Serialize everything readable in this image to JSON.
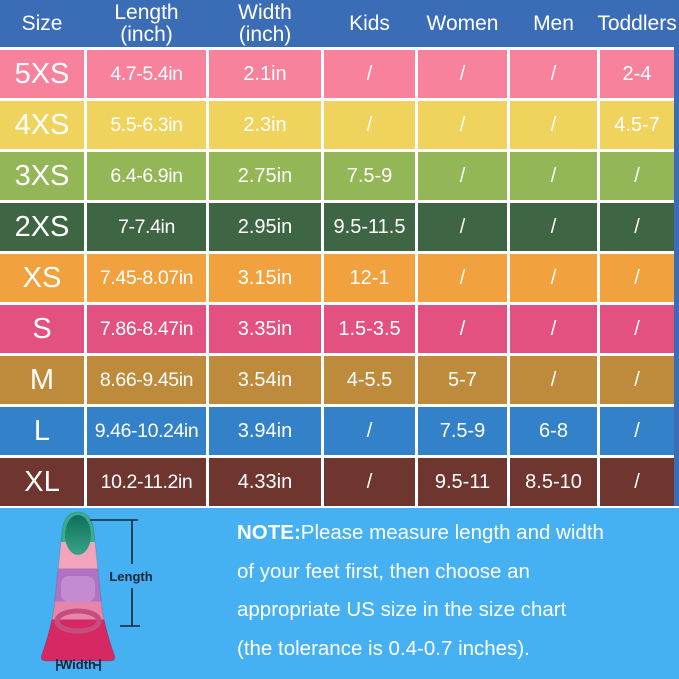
{
  "colors": {
    "header_blue": "#3A6DB5",
    "grid_white": "#FFFFFF",
    "footer_cyan": "#46B1F2",
    "table_text": "#FFFFFF",
    "annotation_navy": "#17253A",
    "row_colors": [
      "#F8819C",
      "#EFD35C",
      "#93B656",
      "#3F6644",
      "#F1A23F",
      "#E25180",
      "#BE8B3D",
      "#3381C9",
      "#6F3630"
    ]
  },
  "table": {
    "headers": [
      {
        "label": "Size"
      },
      {
        "label": "Length",
        "sub": "(inch)"
      },
      {
        "label": "Width",
        "sub": "(inch)"
      },
      {
        "label": "Kids"
      },
      {
        "label": "Women"
      },
      {
        "label": "Men"
      },
      {
        "label": "Toddlers"
      }
    ]
  },
  "chart_data": {
    "type": "table",
    "columns": [
      "Size",
      "Length (inch)",
      "Width (inch)",
      "Kids",
      "Women",
      "Men",
      "Toddlers"
    ],
    "rows": [
      [
        "5XS",
        "4.7-5.4in",
        "2.1in",
        "/",
        "/",
        "/",
        "2-4"
      ],
      [
        "4XS",
        "5.5-6.3in",
        "2.3in",
        "/",
        "/",
        "/",
        "4.5-7"
      ],
      [
        "3XS",
        "6.4-6.9in",
        "2.75in",
        "7.5-9",
        "/",
        "/",
        "/"
      ],
      [
        "2XS",
        "7-7.4in",
        "2.95in",
        "9.5-11.5",
        "/",
        "/",
        "/"
      ],
      [
        "XS",
        "7.45-8.07in",
        "3.15in",
        "12-1",
        "/",
        "/",
        "/"
      ],
      [
        "S",
        "7.86-8.47in",
        "3.35in",
        "1.5-3.5",
        "/",
        "/",
        "/"
      ],
      [
        "M",
        "8.66-9.45in",
        "3.54in",
        "4-5.5",
        "5-7",
        "/",
        "/"
      ],
      [
        "L",
        "9.46-10.24in",
        "3.94in",
        "/",
        "7.5-9",
        "6-8",
        "/"
      ],
      [
        "XL",
        "10.2-11.2in",
        "4.33in",
        "/",
        "9.5-11",
        "8.5-10",
        "/"
      ]
    ]
  },
  "note": {
    "label": "NOTE:",
    "lines": [
      "Please measure length and width",
      "of your feet first, then choose an",
      "appropriate US size in the size chart",
      "(the tolerance is 0.4-0.7 inches)."
    ]
  },
  "fin_diagram": {
    "length_label": "Length",
    "width_label": "Width"
  }
}
